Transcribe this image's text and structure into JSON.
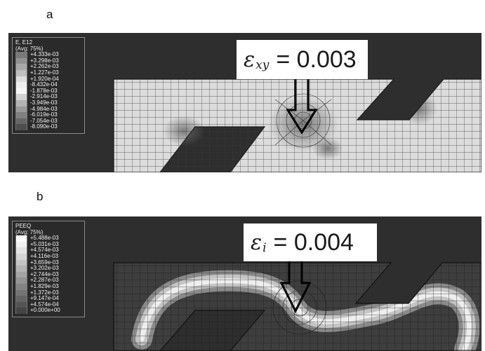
{
  "panel_a": {
    "letter": "a",
    "legend": {
      "variable": "E, E12",
      "averaging": "(Avg: 75%)",
      "values": [
        "+4.333e-03",
        "+3.298e-03",
        "+2.262e-03",
        "+1.227e-03",
        "+1.920e-04",
        "-8.432e-04",
        "-1.878e-03",
        "-2.914e-03",
        "-3.949e-03",
        "-4.984e-03",
        "-6.019e-03",
        "-7.054e-03",
        "-8.090e-03"
      ],
      "colors": [
        "#7a7a7a",
        "#929292",
        "#a9a9a9",
        "#bfbfbf",
        "#dddddd",
        "#eeeeee",
        "#f6f6f6",
        "#d2d2d2",
        "#b4b4b4",
        "#9a9a9a",
        "#808080",
        "#666666",
        "#4e4e4e"
      ]
    },
    "equation": {
      "symbol": "ε",
      "subscript": "xy",
      "rest": "= 0.003"
    }
  },
  "panel_b": {
    "letter": "b",
    "legend": {
      "variable": "PEEQ",
      "averaging": "(Avg: 75%)",
      "values": [
        "+5.488e-03",
        "+5.031e-03",
        "+4.574e-03",
        "+4.116e-03",
        "+3.659e-03",
        "+3.202e-03",
        "+2.744e-03",
        "+2.287e-03",
        "+1.829e-03",
        "+1.372e-03",
        "+9.147e-04",
        "+4.574e-04",
        "+0.000e+00"
      ],
      "colors": [
        "#ffffff",
        "#f2f2f2",
        "#e3e3e3",
        "#d4d4d4",
        "#c4c4c4",
        "#b4b4b4",
        "#a4a4a4",
        "#949494",
        "#848484",
        "#747474",
        "#646464",
        "#545454",
        "#444444"
      ]
    },
    "equation": {
      "symbol": "ε",
      "subscript": "i",
      "rest": "= 0.004"
    }
  }
}
